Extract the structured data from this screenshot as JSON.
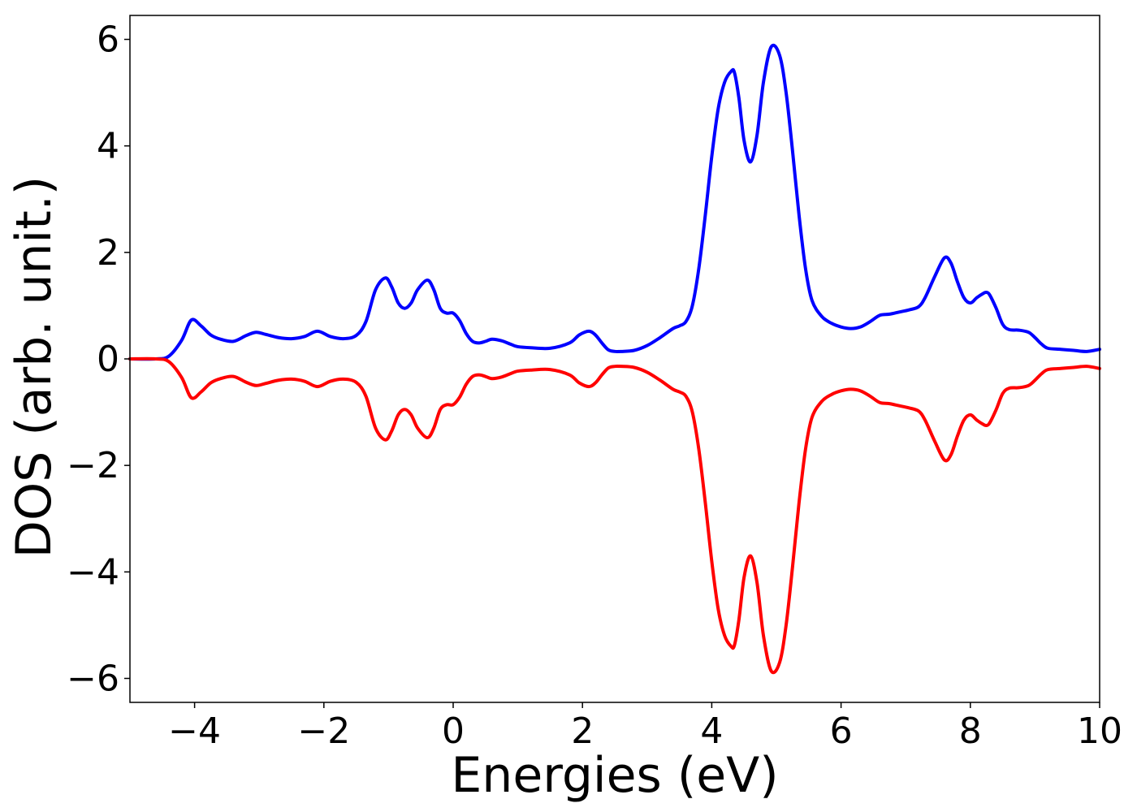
{
  "chart_data": {
    "type": "line",
    "title": "",
    "xlabel": "Energies (eV)",
    "ylabel": "DOS (arb. unit.)",
    "xlim": [
      -5,
      10
    ],
    "ylim": [
      -6.45,
      6.45
    ],
    "grid": false,
    "legend": "none",
    "xticks": [
      {
        "value": -4,
        "label": "−4"
      },
      {
        "value": -2,
        "label": "−2"
      },
      {
        "value": 0,
        "label": "0"
      },
      {
        "value": 2,
        "label": "2"
      },
      {
        "value": 4,
        "label": "4"
      },
      {
        "value": 6,
        "label": "6"
      },
      {
        "value": 8,
        "label": "8"
      },
      {
        "value": 10,
        "label": "10"
      }
    ],
    "yticks": [
      {
        "value": -6,
        "label": "−6"
      },
      {
        "value": -4,
        "label": "−4"
      },
      {
        "value": -2,
        "label": "−2"
      },
      {
        "value": 0,
        "label": "0"
      },
      {
        "value": 2,
        "label": "2"
      },
      {
        "value": 4,
        "label": "4"
      },
      {
        "value": 6,
        "label": "6"
      }
    ],
    "series": [
      {
        "color": "#0000ff",
        "x": [
          -5.0,
          -4.6,
          -4.4,
          -4.2,
          -4.05,
          -3.9,
          -3.75,
          -3.6,
          -3.4,
          -3.2,
          -3.05,
          -2.9,
          -2.7,
          -2.5,
          -2.3,
          -2.1,
          -1.9,
          -1.7,
          -1.5,
          -1.35,
          -1.2,
          -1.05,
          -0.95,
          -0.85,
          -0.75,
          -0.65,
          -0.55,
          -0.4,
          -0.3,
          -0.2,
          -0.1,
          0.0,
          0.1,
          0.2,
          0.3,
          0.4,
          0.5,
          0.6,
          0.75,
          0.9,
          1.0,
          1.2,
          1.5,
          1.8,
          1.95,
          2.1,
          2.2,
          2.3,
          2.4,
          2.5,
          2.6,
          2.8,
          3.0,
          3.2,
          3.4,
          3.5,
          3.6,
          3.7,
          3.8,
          3.9,
          4.0,
          4.1,
          4.2,
          4.3,
          4.35,
          4.42,
          4.5,
          4.6,
          4.7,
          4.8,
          4.92,
          5.05,
          5.15,
          5.25,
          5.35,
          5.45,
          5.55,
          5.7,
          5.85,
          6.0,
          6.15,
          6.3,
          6.45,
          6.6,
          6.75,
          6.9,
          7.05,
          7.2,
          7.3,
          7.45,
          7.6,
          7.7,
          7.8,
          7.9,
          8.0,
          8.1,
          8.2,
          8.25,
          8.3,
          8.4,
          8.5,
          8.6,
          8.75,
          8.9,
          9.0,
          9.1,
          9.2,
          9.4,
          9.6,
          9.8,
          10.0
        ],
        "y": [
          0.0,
          0.0,
          0.05,
          0.35,
          0.73,
          0.62,
          0.45,
          0.37,
          0.33,
          0.44,
          0.5,
          0.46,
          0.4,
          0.38,
          0.42,
          0.52,
          0.42,
          0.38,
          0.44,
          0.7,
          1.3,
          1.52,
          1.35,
          1.05,
          0.95,
          1.05,
          1.3,
          1.48,
          1.3,
          0.95,
          0.86,
          0.86,
          0.72,
          0.48,
          0.33,
          0.3,
          0.33,
          0.37,
          0.34,
          0.27,
          0.23,
          0.21,
          0.2,
          0.3,
          0.45,
          0.52,
          0.45,
          0.3,
          0.17,
          0.14,
          0.14,
          0.16,
          0.25,
          0.4,
          0.57,
          0.62,
          0.7,
          1.0,
          1.7,
          2.7,
          3.8,
          4.7,
          5.2,
          5.4,
          5.38,
          4.9,
          4.1,
          3.7,
          4.2,
          5.2,
          5.86,
          5.7,
          5.0,
          3.9,
          2.7,
          1.7,
          1.1,
          0.8,
          0.67,
          0.6,
          0.57,
          0.6,
          0.7,
          0.82,
          0.84,
          0.88,
          0.92,
          0.98,
          1.15,
          1.55,
          1.9,
          1.8,
          1.45,
          1.15,
          1.05,
          1.15,
          1.23,
          1.25,
          1.2,
          0.95,
          0.65,
          0.55,
          0.54,
          0.5,
          0.4,
          0.28,
          0.2,
          0.18,
          0.16,
          0.14,
          0.18
        ]
      },
      {
        "color": "#ff0000",
        "x": [
          -5.0,
          -4.6,
          -4.4,
          -4.2,
          -4.05,
          -3.9,
          -3.75,
          -3.6,
          -3.4,
          -3.2,
          -3.05,
          -2.9,
          -2.7,
          -2.5,
          -2.3,
          -2.1,
          -1.9,
          -1.7,
          -1.5,
          -1.35,
          -1.2,
          -1.05,
          -0.95,
          -0.85,
          -0.75,
          -0.65,
          -0.55,
          -0.4,
          -0.3,
          -0.2,
          -0.1,
          0.0,
          0.1,
          0.2,
          0.3,
          0.4,
          0.5,
          0.6,
          0.75,
          0.9,
          1.0,
          1.2,
          1.5,
          1.8,
          1.95,
          2.1,
          2.2,
          2.3,
          2.4,
          2.5,
          2.6,
          2.8,
          3.0,
          3.2,
          3.4,
          3.5,
          3.6,
          3.7,
          3.8,
          3.9,
          4.0,
          4.1,
          4.2,
          4.3,
          4.35,
          4.42,
          4.5,
          4.6,
          4.7,
          4.8,
          4.92,
          5.05,
          5.15,
          5.25,
          5.35,
          5.45,
          5.55,
          5.7,
          5.85,
          6.0,
          6.15,
          6.3,
          6.45,
          6.6,
          6.75,
          6.9,
          7.05,
          7.2,
          7.3,
          7.45,
          7.6,
          7.7,
          7.8,
          7.9,
          8.0,
          8.1,
          8.2,
          8.25,
          8.3,
          8.4,
          8.5,
          8.6,
          8.75,
          8.9,
          9.0,
          9.1,
          9.2,
          9.4,
          9.6,
          9.8,
          10.0
        ],
        "y": [
          0.0,
          0.0,
          -0.05,
          -0.35,
          -0.73,
          -0.62,
          -0.45,
          -0.37,
          -0.33,
          -0.44,
          -0.5,
          -0.46,
          -0.4,
          -0.38,
          -0.42,
          -0.52,
          -0.42,
          -0.38,
          -0.44,
          -0.7,
          -1.3,
          -1.52,
          -1.35,
          -1.05,
          -0.95,
          -1.05,
          -1.3,
          -1.48,
          -1.3,
          -0.95,
          -0.86,
          -0.86,
          -0.72,
          -0.48,
          -0.33,
          -0.3,
          -0.33,
          -0.37,
          -0.34,
          -0.27,
          -0.23,
          -0.21,
          -0.2,
          -0.3,
          -0.45,
          -0.52,
          -0.45,
          -0.3,
          -0.17,
          -0.14,
          -0.14,
          -0.16,
          -0.25,
          -0.4,
          -0.57,
          -0.62,
          -0.7,
          -1.0,
          -1.7,
          -2.7,
          -3.8,
          -4.7,
          -5.2,
          -5.4,
          -5.38,
          -4.9,
          -4.1,
          -3.7,
          -4.2,
          -5.2,
          -5.86,
          -5.7,
          -5.0,
          -3.9,
          -2.7,
          -1.7,
          -1.1,
          -0.8,
          -0.67,
          -0.6,
          -0.57,
          -0.6,
          -0.7,
          -0.82,
          -0.84,
          -0.88,
          -0.92,
          -0.98,
          -1.15,
          -1.55,
          -1.9,
          -1.8,
          -1.45,
          -1.15,
          -1.05,
          -1.15,
          -1.23,
          -1.25,
          -1.2,
          -0.95,
          -0.65,
          -0.55,
          -0.54,
          -0.5,
          -0.4,
          -0.28,
          -0.2,
          -0.18,
          -0.16,
          -0.14,
          -0.18
        ]
      }
    ]
  }
}
